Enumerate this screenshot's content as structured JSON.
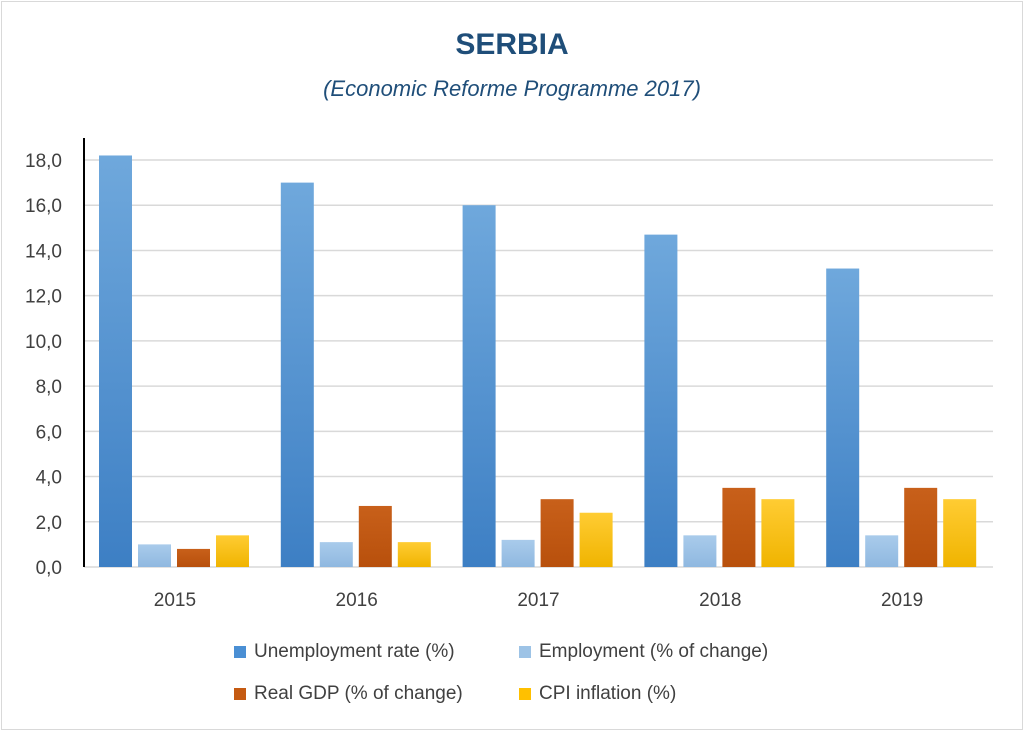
{
  "chart_data": {
    "type": "bar",
    "title": "SERBIA",
    "subtitle": "(Economic Reforme Programme 2017)",
    "categories": [
      "2015",
      "2016",
      "2017",
      "2018",
      "2019"
    ],
    "ylim": [
      0,
      18
    ],
    "yticks": [
      "0,0",
      "2,0",
      "4,0",
      "6,0",
      "8,0",
      "10,0",
      "12,0",
      "14,0",
      "16,0",
      "18,0"
    ],
    "grid": true,
    "legend_position": "bottom",
    "series": [
      {
        "name": "Unemployment rate (%)",
        "color": "#4a8fd4",
        "values": [
          18.2,
          17.0,
          16.0,
          14.7,
          13.2
        ]
      },
      {
        "name": "Employment (% of change)",
        "color": "#9dc3e6",
        "values": [
          1.0,
          1.1,
          1.2,
          1.4,
          1.4
        ]
      },
      {
        "name": "Real GDP (% of change)",
        "color": "#c55a11",
        "values": [
          0.8,
          2.7,
          3.0,
          3.5,
          3.5
        ]
      },
      {
        "name": "CPI inflation (%)",
        "color": "#ffc000",
        "values": [
          1.4,
          1.1,
          2.4,
          3.0,
          3.0
        ]
      }
    ]
  }
}
